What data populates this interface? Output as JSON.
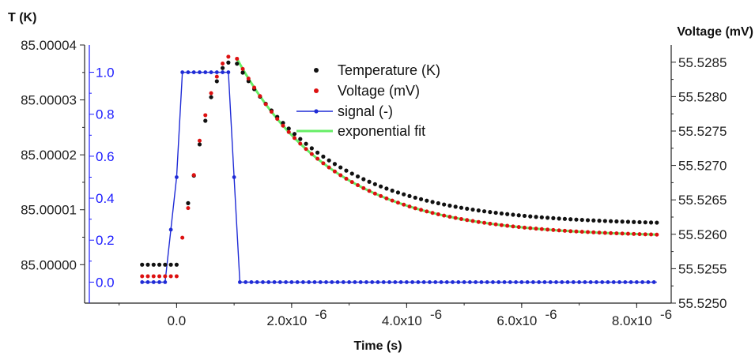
{
  "chart_data": {
    "type": "scatter",
    "title": "",
    "xlabel": "Time (s)",
    "ylabel_left": "T (K)",
    "ylabel_right": "Voltage (mV)",
    "xlim": [
      -1.6e-06,
      8.6e-06
    ],
    "x_ticks": [
      "0.0",
      "2.0x10",
      "4.0x10",
      "6.0x10",
      "8.0x10"
    ],
    "x_tick_exponent": "-6",
    "y_left_ticks": [
      "85.00000",
      "85.00001",
      "85.00002",
      "85.00003",
      "85.00004"
    ],
    "y_left_lim": [
      84.999993,
      85.00004
    ],
    "y_signal_ticks": [
      "0.0",
      "0.2",
      "0.4",
      "0.6",
      "0.8",
      "1.0"
    ],
    "y_signal_lim": [
      -0.1,
      1.13
    ],
    "y_right_ticks": [
      "55.5250",
      "55.5255",
      "55.5260",
      "55.5265",
      "55.5270",
      "55.5275",
      "55.5280",
      "55.5285"
    ],
    "y_right_lim": [
      55.525,
      55.52875
    ],
    "legend_position": "top-center",
    "series": [
      {
        "name": "Temperature (K)",
        "axis": "left",
        "style": "dots",
        "color": "#111111",
        "pre_x": [
          -6e-07,
          -5e-07,
          -4e-07,
          -3e-07,
          -2e-07,
          -1e-07,
          0.0
        ],
        "pre_y": [
          85.0,
          85.0,
          85.0,
          85.0,
          85.0,
          85.0,
          85.0
        ],
        "heat_x": [
          2e-07,
          3e-07,
          4e-07,
          5e-07,
          6e-07,
          7e-07,
          8e-07,
          9e-07
        ],
        "heat_y": [
          85.0000112,
          85.0000162,
          85.0000219,
          85.0000262,
          85.0000305,
          85.0000334,
          85.0000358,
          85.0000368
        ],
        "decay_x_start": 1.05e-06,
        "decay_x_step": 1e-07,
        "decay_x_end": 8.35e-06,
        "decay_model": "y0 + a*exp(-(t-1.05e-6)/tau)",
        "decay_y0": 85.0000072,
        "decay_a": 2.94e-05,
        "decay_tau": 1.75e-06
      },
      {
        "name": "Voltage (mV)",
        "axis": "right",
        "style": "dots",
        "color": "#dd1111",
        "pre_x": [
          -6e-07,
          -5e-07,
          -4e-07,
          -3e-07,
          -2e-07,
          -1e-07,
          0.0
        ],
        "pre_y": [
          55.52539,
          55.52539,
          55.52539,
          55.52539,
          55.52539,
          55.52539,
          55.52539
        ],
        "heat_x": [
          1e-07,
          2e-07,
          3e-07,
          4e-07,
          5e-07,
          6e-07,
          7e-07,
          8e-07,
          9e-07
        ],
        "heat_y": [
          55.52595,
          55.52638,
          55.52686,
          55.52736,
          55.52773,
          55.52805,
          55.52829,
          55.52848,
          55.52858
        ],
        "decay_x_start": 1.05e-06,
        "decay_x_step": 1e-07,
        "decay_x_end": 8.35e-06,
        "decay_model": "y0 + a*exp(-(t-1.05e-6)/tau)",
        "decay_y0": 55.52596,
        "decay_a": 0.00259,
        "decay_tau": 1.7e-06
      },
      {
        "name": "signal (-)",
        "axis": "signal",
        "style": "line-dots",
        "color": "#1f2bd6",
        "x": [
          -6e-07,
          -4e-07,
          -2e-07,
          0.0,
          1e-07,
          3e-07,
          5e-07,
          7e-07,
          9e-07,
          1e-06,
          1.1e-06,
          1.3e-06,
          8.35e-06
        ],
        "y": [
          0.0,
          0.0,
          0.0,
          0.5,
          1.0,
          1.0,
          1.0,
          1.0,
          1.0,
          0.5,
          0.0,
          0.0,
          0.0
        ],
        "dot_step": 1e-07
      },
      {
        "name": "exponential fit",
        "axis": "right",
        "style": "line",
        "color": "#66ee66",
        "x_start": 1.05e-06,
        "x_end": 8.35e-06,
        "model": "y0 + a*exp(-(t-1.05e-6)/tau)",
        "y0": 55.52596,
        "a": 0.00259,
        "tau": 1.7e-06
      }
    ]
  }
}
